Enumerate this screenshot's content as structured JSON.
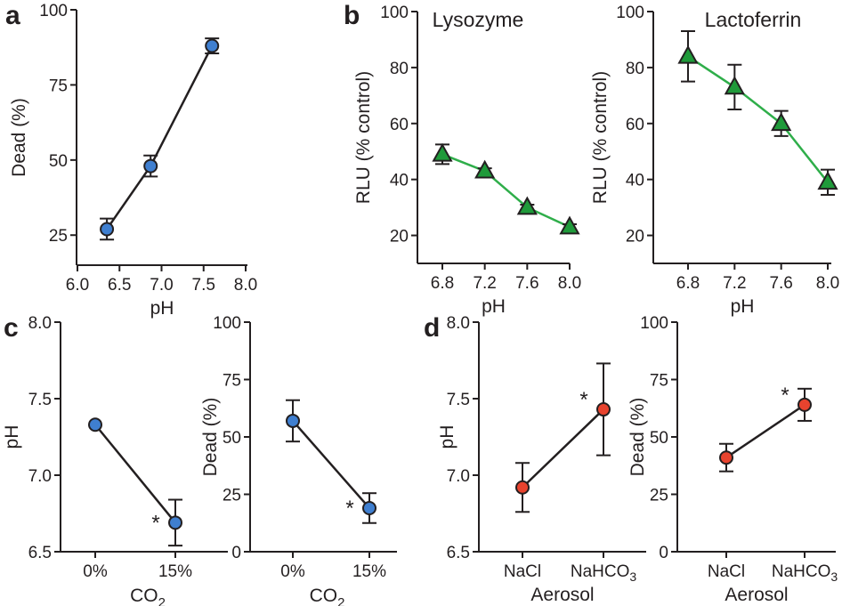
{
  "panel_labels": [
    "a",
    "b",
    "c",
    "d"
  ],
  "colors": {
    "axis": "#231f20",
    "blue": "#3f7fd0",
    "green": "#1f9a3a",
    "green_line": "#2fae4a",
    "red": "#e8432e"
  },
  "chart_data": [
    {
      "id": "a",
      "type": "line",
      "title": "",
      "xlabel": "pH",
      "ylabel": "Dead (%)",
      "xlim": [
        6.0,
        8.0
      ],
      "ylim": [
        15,
        100
      ],
      "xticks": [
        "6.0",
        "6.5",
        "7.0",
        "7.5",
        "8.0"
      ],
      "yticks": [
        "25",
        "50",
        "75",
        "100"
      ],
      "series": [
        {
          "marker": "circle",
          "color": "blue",
          "line_color": "axis",
          "x": [
            6.35,
            6.87,
            7.6
          ],
          "y": [
            27,
            48,
            88
          ],
          "err": [
            3.5,
            3.5,
            2.5
          ]
        }
      ]
    },
    {
      "id": "b1",
      "type": "line",
      "title": "Lysozyme",
      "xlabel": "pH",
      "ylabel": "RLU (% control)",
      "xlim": [
        6.6,
        8.0
      ],
      "ylim": [
        10,
        100
      ],
      "xticks": [
        "6.8",
        "7.2",
        "7.6",
        "8.0"
      ],
      "yticks": [
        "20",
        "40",
        "60",
        "80",
        "100"
      ],
      "series": [
        {
          "marker": "triangle",
          "color": "green",
          "line_color": "green_line",
          "x": [
            6.8,
            7.2,
            7.6,
            8.0
          ],
          "y": [
            49,
            43,
            30,
            23
          ],
          "err": [
            3.5,
            1,
            1,
            1
          ]
        }
      ]
    },
    {
      "id": "b2",
      "type": "line",
      "title": "Lactoferrin",
      "xlabel": "pH",
      "ylabel": "RLU (% control)",
      "xlim": [
        6.6,
        8.0
      ],
      "ylim": [
        10,
        100
      ],
      "xticks": [
        "6.8",
        "7.2",
        "7.6",
        "8.0"
      ],
      "yticks": [
        "20",
        "40",
        "60",
        "80",
        "100"
      ],
      "series": [
        {
          "marker": "triangle",
          "color": "green",
          "line_color": "green_line",
          "x": [
            6.8,
            7.2,
            7.6,
            8.0
          ],
          "y": [
            84,
            73,
            60,
            39
          ],
          "err": [
            9,
            8,
            4.5,
            4.5
          ]
        }
      ]
    },
    {
      "id": "c1",
      "type": "line",
      "title": "",
      "xlabel": "CO2",
      "ylabel": "pH",
      "ylim": [
        6.5,
        8.0
      ],
      "categories": [
        "0%",
        "15%"
      ],
      "yticks": [
        "6.5",
        "7.0",
        "7.5",
        "8.0"
      ],
      "series": [
        {
          "marker": "circle",
          "color": "blue",
          "line_color": "axis",
          "y": [
            7.33,
            6.69
          ],
          "err": [
            0,
            0.15
          ],
          "star": [
            false,
            true
          ]
        }
      ]
    },
    {
      "id": "c2",
      "type": "line",
      "title": "",
      "xlabel": "CO2",
      "ylabel": "Dead (%)",
      "ylim": [
        0,
        100
      ],
      "categories": [
        "0%",
        "15%"
      ],
      "yticks": [
        "0",
        "25",
        "50",
        "75",
        "100"
      ],
      "series": [
        {
          "marker": "circle",
          "color": "blue",
          "line_color": "axis",
          "y": [
            57,
            19
          ],
          "err": [
            9,
            6.5
          ],
          "star": [
            false,
            true
          ]
        }
      ]
    },
    {
      "id": "d1",
      "type": "line",
      "title": "",
      "xlabel": "Aerosol",
      "ylabel": "pH",
      "ylim": [
        6.5,
        8.0
      ],
      "categories": [
        "NaCl",
        "NaHCO3"
      ],
      "yticks": [
        "6.5",
        "7.0",
        "7.5",
        "8.0"
      ],
      "series": [
        {
          "marker": "circle",
          "color": "red",
          "line_color": "axis",
          "y": [
            6.92,
            7.43
          ],
          "err": [
            0.16,
            0.3
          ],
          "star": [
            false,
            true
          ]
        }
      ]
    },
    {
      "id": "d2",
      "type": "line",
      "title": "",
      "xlabel": "Aerosol",
      "ylabel": "Dead (%)",
      "ylim": [
        0,
        100
      ],
      "categories": [
        "NaCl",
        "NaHCO3"
      ],
      "yticks": [
        "0",
        "25",
        "50",
        "75",
        "100"
      ],
      "series": [
        {
          "marker": "circle",
          "color": "red",
          "line_color": "axis",
          "y": [
            41,
            64
          ],
          "err": [
            6,
            7
          ],
          "star": [
            false,
            true
          ]
        }
      ]
    }
  ]
}
